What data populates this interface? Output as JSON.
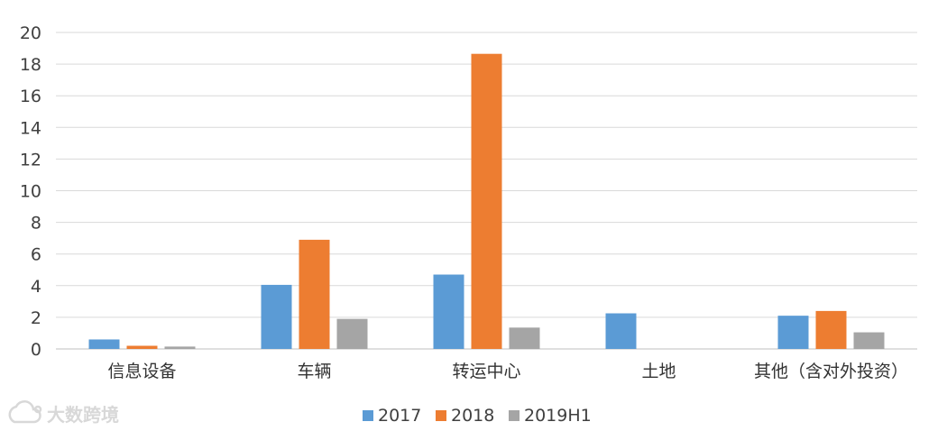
{
  "chart_data": {
    "type": "bar",
    "categories": [
      "信息设备",
      "车辆",
      "转运中心",
      "土地",
      "其他（含对外投资）"
    ],
    "series": [
      {
        "name": "2017",
        "color": "#5b9bd5",
        "values": [
          0.6,
          4.05,
          4.7,
          2.25,
          2.1
        ]
      },
      {
        "name": "2018",
        "color": "#ed7d31",
        "values": [
          0.2,
          6.9,
          18.65,
          0,
          2.4
        ]
      },
      {
        "name": "2019H1",
        "color": "#a5a5a5",
        "values": [
          0.15,
          1.9,
          1.35,
          0,
          1.05
        ]
      }
    ],
    "ylim": [
      0,
      20
    ],
    "yticks": [
      0,
      2,
      4,
      6,
      8,
      10,
      12,
      14,
      16,
      18,
      20
    ],
    "grid": true,
    "legend_position": "bottom-center",
    "title": "",
    "xlabel": "",
    "ylabel": ""
  },
  "watermark": {
    "text": "大数跨境",
    "icon": "cloud-logo-icon"
  }
}
